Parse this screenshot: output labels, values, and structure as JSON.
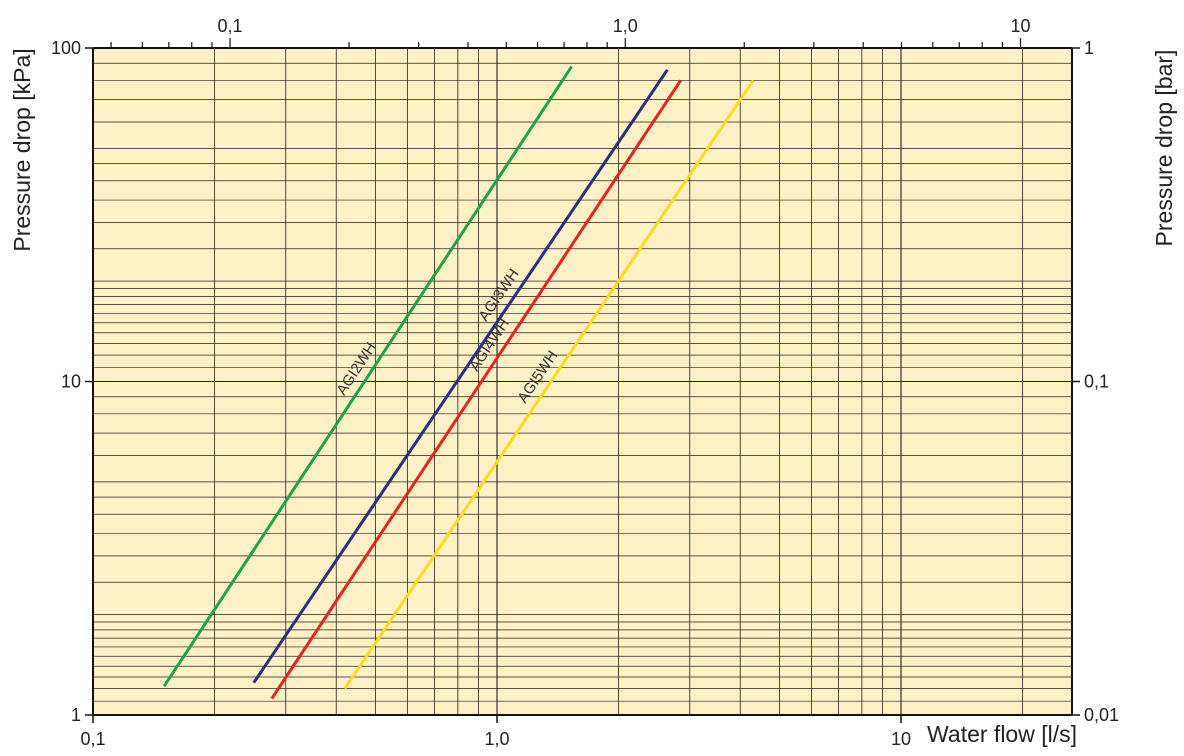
{
  "chart_data": {
    "type": "line",
    "x_scale": "log",
    "y_scale": "log",
    "xlabel": "Water flow [l/s]",
    "ylabel": "Pressure drop [kPa]",
    "y2label": "Pressure drop [bar]",
    "xlim": [
      0.1,
      26.5
    ],
    "ylim": [
      1,
      100
    ],
    "top_xlim": [
      0.045,
      13.5
    ],
    "x_tick_labels": [
      "0,1",
      "1,0",
      "10"
    ],
    "x_tick_values": [
      0.1,
      1,
      10
    ],
    "top_tick_labels": [
      "0,1",
      "1,0",
      "10"
    ],
    "top_tick_values": [
      0.1,
      1,
      10
    ],
    "y_tick_labels": [
      "1",
      "10",
      "100"
    ],
    "y_tick_values": [
      1,
      10,
      100
    ],
    "y2_tick_labels": [
      "0,01",
      "0,1",
      "1"
    ],
    "y2_tick_values": [
      1,
      10,
      100
    ],
    "grid": true,
    "background": "#fdf0c4",
    "series": [
      {
        "name": "AGI2WH",
        "color": "#1fa24a",
        "x": [
          0.15,
          1.53
        ],
        "y": [
          1.22,
          88
        ]
      },
      {
        "name": "AGI3WH",
        "color": "#2b2f7e",
        "x": [
          0.25,
          2.64
        ],
        "y": [
          1.25,
          86
        ]
      },
      {
        "name": "AGI4WH",
        "color": "#e52320",
        "x": [
          0.277,
          2.85
        ],
        "y": [
          1.12,
          80
        ]
      },
      {
        "name": "AGI5WH",
        "color": "#f7dc1e",
        "x": [
          0.42,
          4.31
        ],
        "y": [
          1.2,
          80
        ]
      }
    ]
  }
}
